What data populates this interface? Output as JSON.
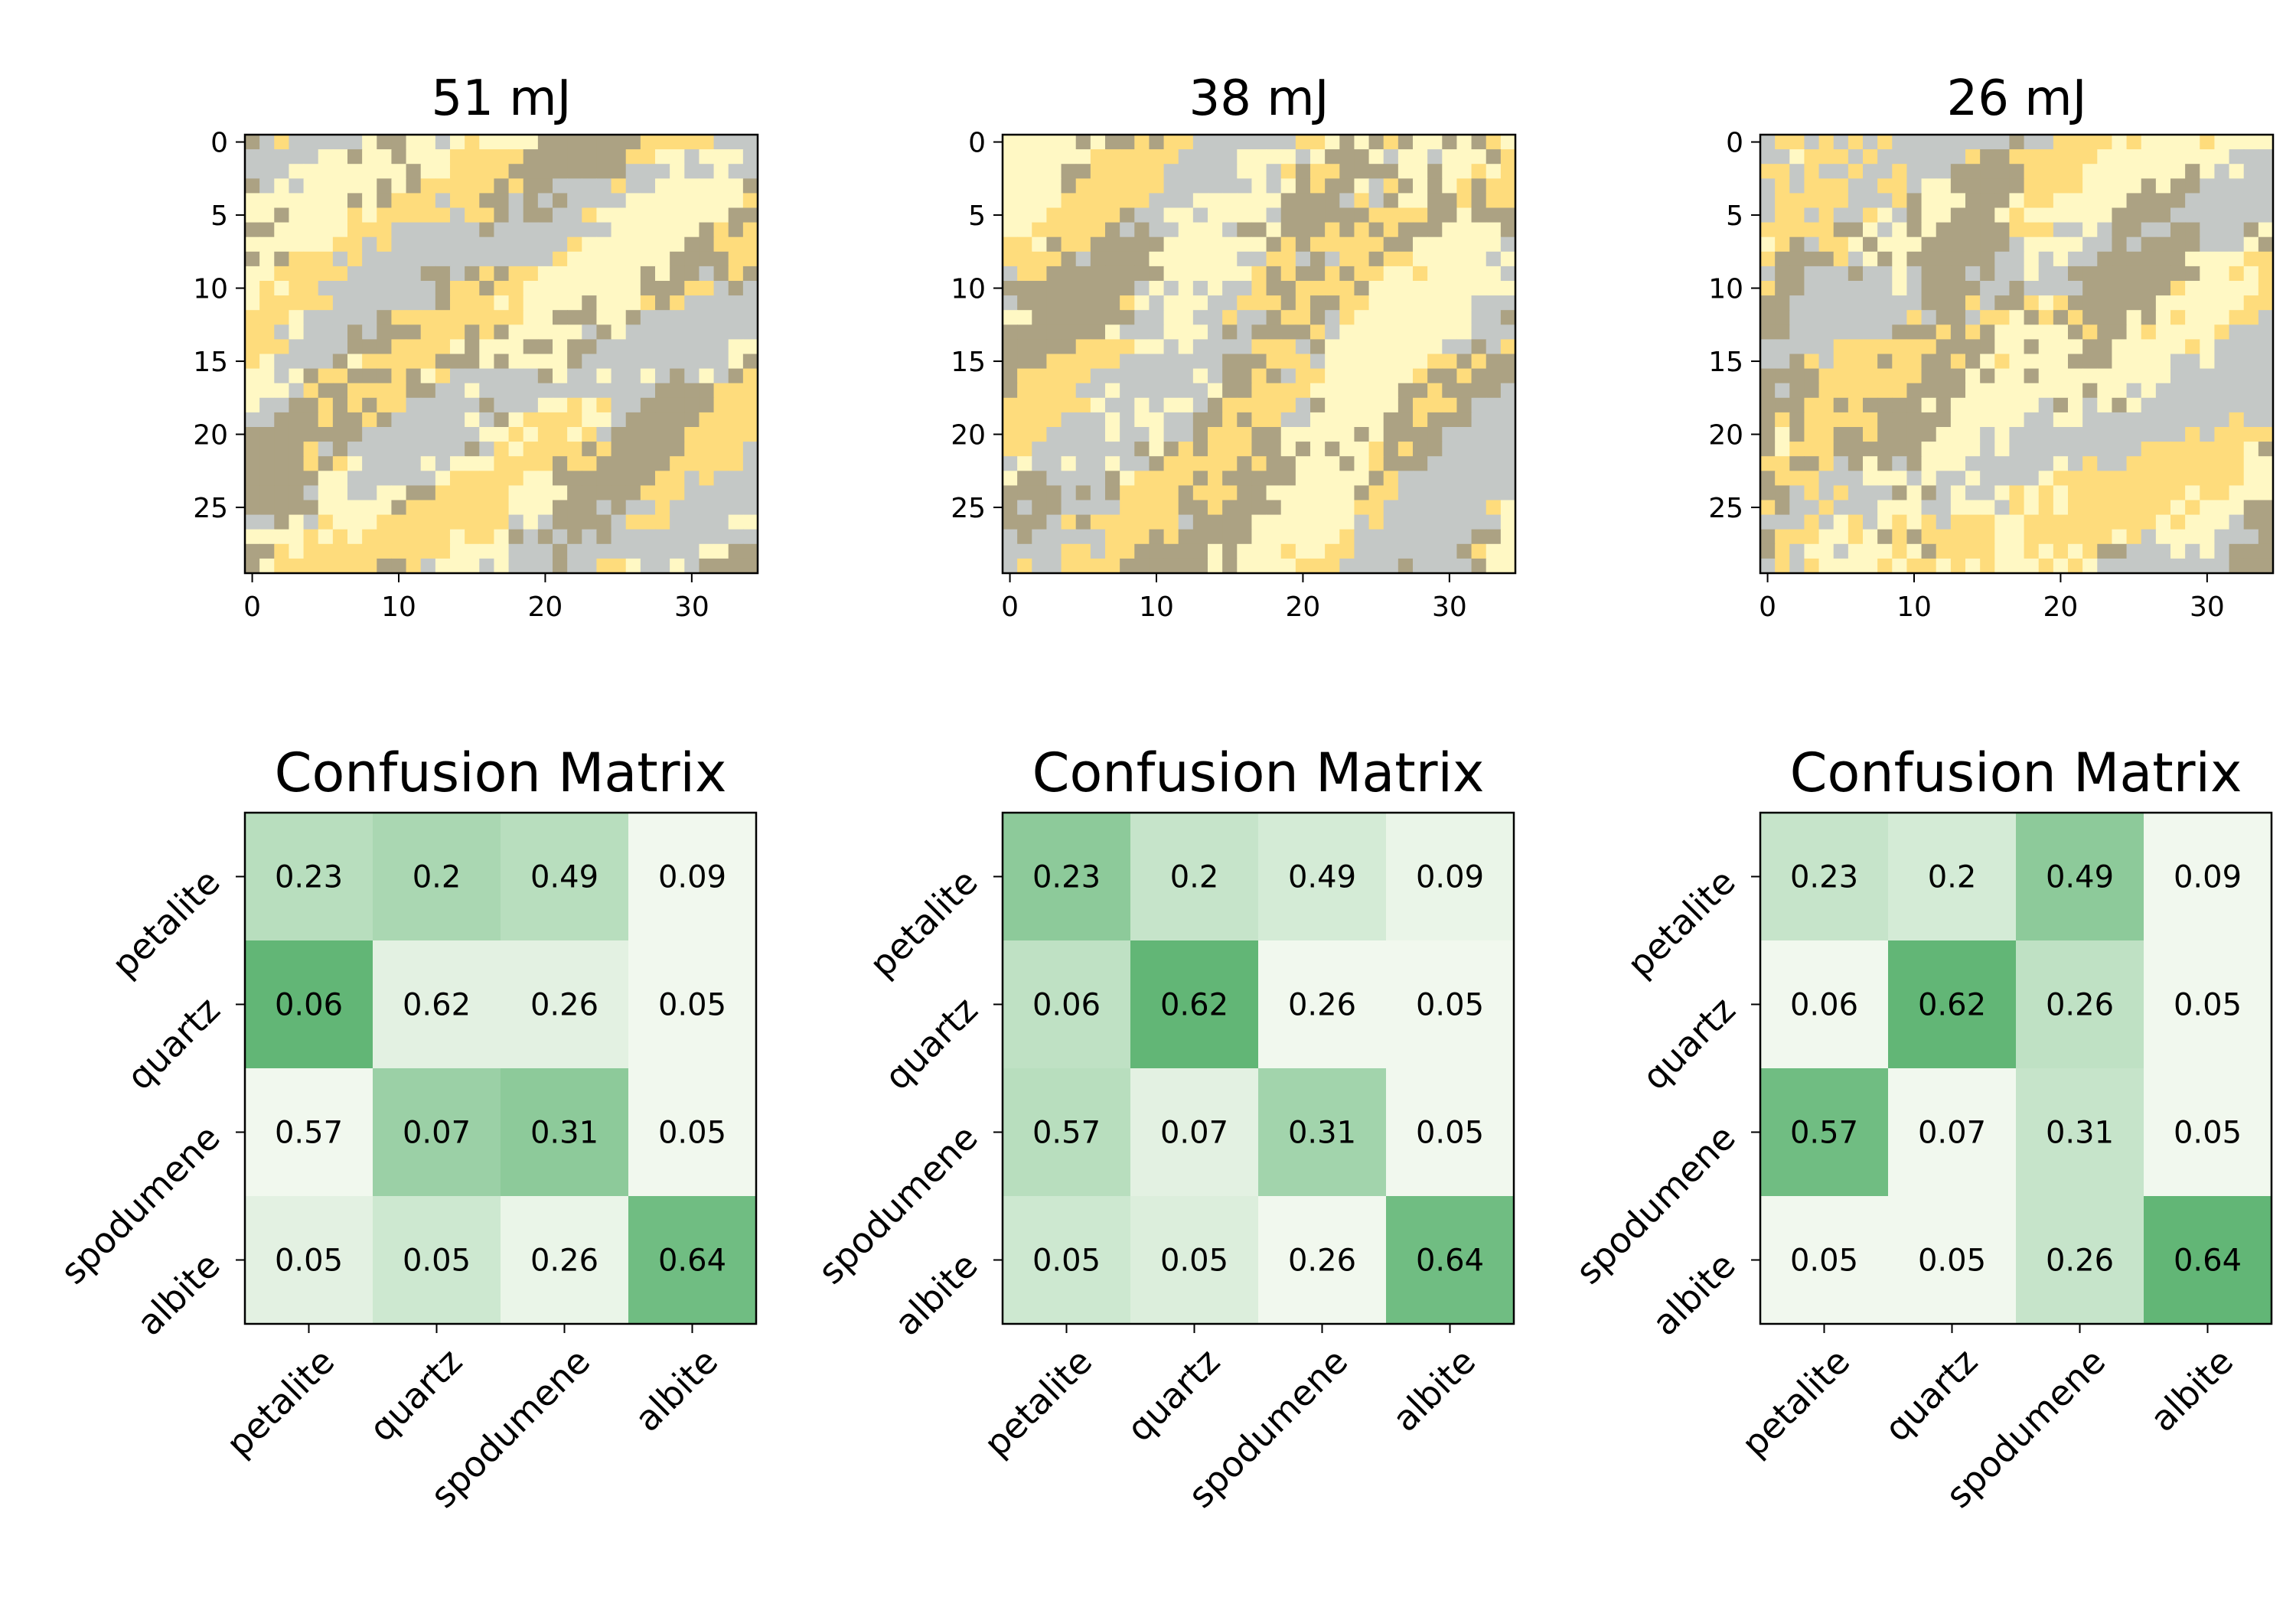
{
  "colors": {
    "petalite": "#fedc7c",
    "quartz": "#c4c8c6",
    "spodumene": "#aca283",
    "albite": "#fff8c4",
    "cm_low": "#f1f8ee",
    "cm_high": "#62b676"
  },
  "chart_data": [
    {
      "type": "heatmap",
      "title": "51 mJ",
      "xticks": [
        0,
        10,
        20,
        30
      ],
      "yticks": [
        0,
        5,
        10,
        15,
        20,
        25
      ],
      "xlim": [
        -0.5,
        34.5
      ],
      "ylim": [
        29.5,
        -0.5
      ],
      "grid_shape": [
        30,
        35
      ],
      "classes": [
        "petalite",
        "quartz",
        "spodumene",
        "albite"
      ],
      "pattern_seed": 51
    },
    {
      "type": "heatmap",
      "title": "38 mJ",
      "xticks": [
        0,
        10,
        20,
        30
      ],
      "yticks": [
        0,
        5,
        10,
        15,
        20,
        25
      ],
      "xlim": [
        -0.5,
        34.5
      ],
      "ylim": [
        29.5,
        -0.5
      ],
      "grid_shape": [
        30,
        35
      ],
      "classes": [
        "petalite",
        "quartz",
        "spodumene",
        "albite"
      ],
      "pattern_seed": 38
    },
    {
      "type": "heatmap",
      "title": "26 mJ",
      "xticks": [
        0,
        10,
        20,
        30
      ],
      "yticks": [
        0,
        5,
        10,
        15,
        20,
        25
      ],
      "xlim": [
        -0.5,
        34.5
      ],
      "ylim": [
        29.5,
        -0.5
      ],
      "grid_shape": [
        30,
        35
      ],
      "classes": [
        "petalite",
        "quartz",
        "spodumene",
        "albite"
      ],
      "pattern_seed": 26
    },
    {
      "type": "heatmap",
      "title": "Confusion Matrix",
      "x_labels": [
        "petalite",
        "quartz",
        "spodumene",
        "albite"
      ],
      "y_labels": [
        "petalite",
        "quartz",
        "spodumene",
        "albite"
      ],
      "values": [
        [
          0.23,
          0.2,
          0.49,
          0.09
        ],
        [
          0.06,
          0.62,
          0.26,
          0.05
        ],
        [
          0.57,
          0.07,
          0.31,
          0.05
        ],
        [
          0.05,
          0.05,
          0.26,
          0.64
        ]
      ],
      "shade": [
        [
          0.4,
          0.5,
          0.4,
          0.0
        ],
        [
          1.0,
          0.1,
          0.1,
          0.0
        ],
        [
          0.0,
          0.6,
          0.7,
          0.0
        ],
        [
          0.1,
          0.25,
          0.05,
          0.9
        ]
      ]
    },
    {
      "type": "heatmap",
      "title": "Confusion Matrix",
      "x_labels": [
        "petalite",
        "quartz",
        "spodumene",
        "albite"
      ],
      "y_labels": [
        "petalite",
        "quartz",
        "spodumene",
        "albite"
      ],
      "values": [
        [
          0.23,
          0.2,
          0.49,
          0.09
        ],
        [
          0.06,
          0.62,
          0.26,
          0.05
        ],
        [
          0.57,
          0.07,
          0.31,
          0.05
        ],
        [
          0.05,
          0.05,
          0.26,
          0.64
        ]
      ],
      "shade": [
        [
          0.7,
          0.3,
          0.2,
          0.05
        ],
        [
          0.35,
          1.0,
          0.0,
          0.0
        ],
        [
          0.4,
          0.1,
          0.55,
          0.0
        ],
        [
          0.25,
          0.15,
          0.0,
          0.9
        ]
      ]
    },
    {
      "type": "heatmap",
      "title": "Confusion Matrix",
      "x_labels": [
        "petalite",
        "quartz",
        "spodumene",
        "albite"
      ],
      "y_labels": [
        "petalite",
        "quartz",
        "spodumene",
        "albite"
      ],
      "values": [
        [
          0.23,
          0.2,
          0.49,
          0.09
        ],
        [
          0.06,
          0.62,
          0.26,
          0.05
        ],
        [
          0.57,
          0.07,
          0.31,
          0.05
        ],
        [
          0.05,
          0.05,
          0.26,
          0.64
        ]
      ],
      "shade": [
        [
          0.3,
          0.2,
          0.7,
          0.0
        ],
        [
          0.0,
          1.0,
          0.35,
          0.0
        ],
        [
          0.9,
          0.0,
          0.3,
          0.0
        ],
        [
          0.0,
          0.0,
          0.3,
          1.0
        ]
      ]
    }
  ]
}
